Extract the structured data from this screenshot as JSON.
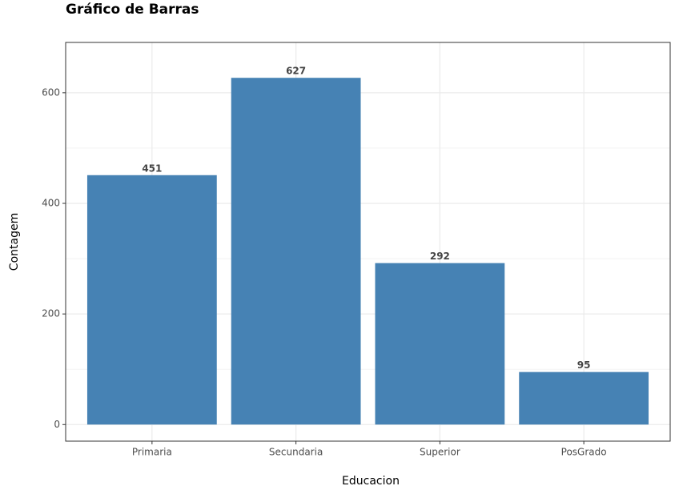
{
  "chart_data": {
    "type": "bar",
    "title": "Gráfico de Barras",
    "x_label": "Educacion",
    "y_label": "Contagem",
    "categories": [
      "Primaria",
      "Secundaria",
      "Superior",
      "PosGrado"
    ],
    "values": [
      451,
      627,
      292,
      95
    ],
    "color": "#4682b4",
    "ylim": [
      -30,
      691
    ],
    "yticks": [
      0,
      200,
      400,
      600
    ],
    "yminor_ticks": [
      100,
      300,
      500
    ],
    "grid": true
  }
}
